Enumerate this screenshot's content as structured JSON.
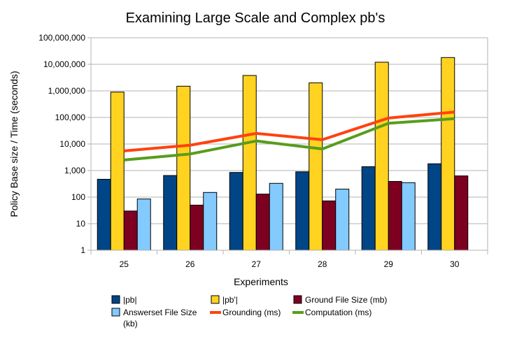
{
  "chart_data": {
    "type": "bar",
    "title": "Examining Large Scale and Complex pb's",
    "xlabel": "Experiments",
    "ylabel": "Policy Base size / Time (seconds)",
    "yscale": "log",
    "ylim": [
      1,
      100000000
    ],
    "y_ticks": [
      "1",
      "10",
      "100",
      "1,000",
      "10,000",
      "100,000",
      "1,000,000",
      "10,000,000",
      "100,000,000"
    ],
    "grid": "horizontal",
    "legend_position": "bottom",
    "categories": [
      "25",
      "26",
      "27",
      "28",
      "29",
      "30"
    ],
    "bar_series": [
      {
        "name": "|pb|",
        "color": "#004586",
        "values": [
          470,
          650,
          850,
          900,
          1400,
          1800
        ]
      },
      {
        "name": "|pb'|",
        "color": "#ffd320",
        "values": [
          900000,
          1500000,
          3800000,
          2000000,
          12000000,
          18000000
        ]
      },
      {
        "name": "Ground File Size (mb)",
        "color": "#7e0021",
        "values": [
          30,
          50,
          130,
          72,
          390,
          630
        ]
      },
      {
        "name": "Answerset File Size (kb)",
        "color": "#83caff",
        "values": [
          85,
          150,
          330,
          200,
          350,
          null
        ]
      }
    ],
    "line_series": [
      {
        "name": "Grounding (ms)",
        "color": "#ff420e",
        "values": [
          5500,
          9000,
          25000,
          14500,
          95000,
          160000
        ]
      },
      {
        "name": "Computation (ms)",
        "color": "#579d1c",
        "values": [
          2500,
          4200,
          13000,
          6500,
          60000,
          90000
        ]
      }
    ]
  }
}
